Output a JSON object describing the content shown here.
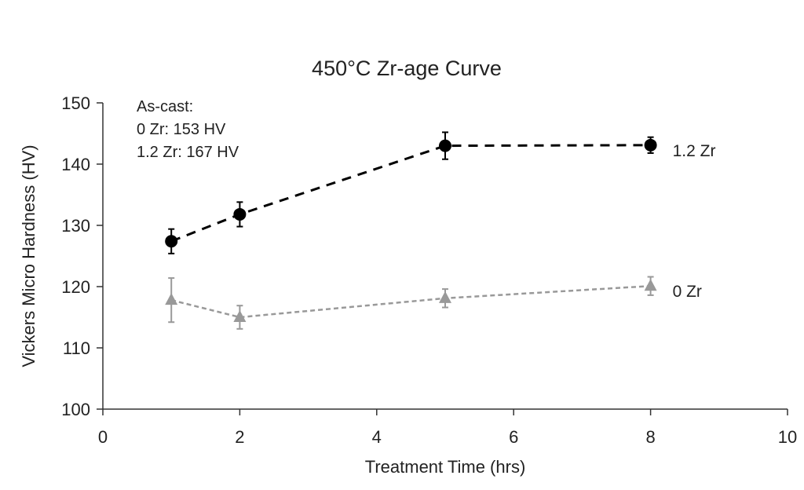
{
  "chart_data": {
    "type": "line",
    "title": "450°C Zr-age Curve",
    "xlabel": "Treatment Time (hrs)",
    "ylabel": "Vickers Micro Hardness (HV)",
    "xlim": [
      0,
      10
    ],
    "ylim": [
      100,
      150
    ],
    "xticks": [
      0,
      2,
      4,
      6,
      8,
      10
    ],
    "yticks": [
      100,
      110,
      120,
      130,
      140,
      150
    ],
    "grid": false,
    "annotation": [
      "As-cast:",
      "0 Zr: 153 HV",
      "1.2 Zr: 167 HV"
    ],
    "series": [
      {
        "name": "1.2 Zr",
        "color": "#000000",
        "marker": "circle",
        "line": "dashed",
        "x": [
          1,
          2,
          5,
          8
        ],
        "y": [
          127.4,
          131.8,
          143.0,
          143.1
        ],
        "error": [
          2.0,
          2.0,
          2.2,
          1.3
        ]
      },
      {
        "name": "0 Zr",
        "color": "#999999",
        "marker": "triangle",
        "line": "dotted",
        "x": [
          1,
          2,
          5,
          8
        ],
        "y": [
          117.8,
          115.0,
          118.1,
          120.1
        ],
        "error": [
          3.6,
          1.9,
          1.5,
          1.5
        ]
      }
    ]
  }
}
